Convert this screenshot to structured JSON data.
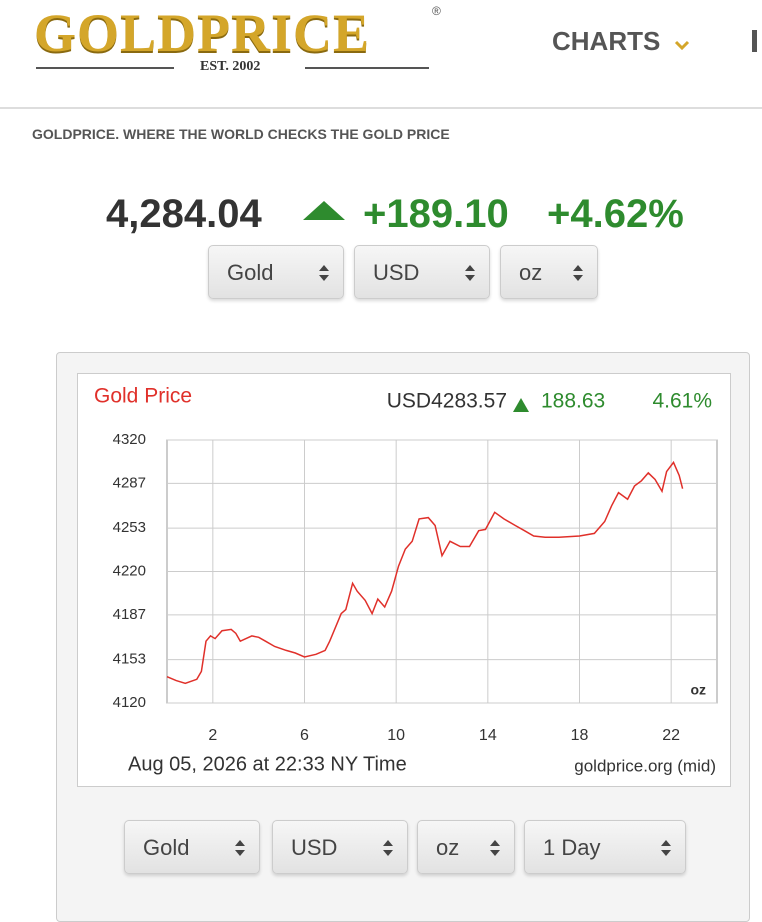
{
  "header": {
    "logo": "GOLDPRICE",
    "registered": "®",
    "established": "EST. 2002",
    "nav": "CHARTS"
  },
  "tagline": "GOLDPRICE. WHERE THE WORLD CHECKS THE GOLD PRICE",
  "price": {
    "value": "4,284.04",
    "change": "+189.10",
    "change_pct": "+4.62%"
  },
  "top_selects": [
    "Gold",
    "USD",
    "oz"
  ],
  "chart_data": {
    "type": "line",
    "title": "Gold Price",
    "quote": "USD4283.57",
    "change": "188.63",
    "change_pct": "4.61%",
    "unit": "oz",
    "timestamp": "Aug 05, 2026 at 22:33 NY Time",
    "source": "goldprice.org (mid)",
    "color": "#e0302a",
    "grid": true,
    "x": [
      0,
      0.4,
      0.8,
      1.3,
      1.5,
      1.7,
      1.9,
      2.1,
      2.4,
      2.8,
      3.0,
      3.2,
      3.7,
      4.0,
      4.3,
      4.7,
      5.2,
      5.6,
      6.0,
      6.5,
      6.9,
      7.1,
      7.6,
      7.8,
      8.1,
      8.3,
      8.65,
      8.95,
      9.2,
      9.5,
      9.8,
      10.1,
      10.4,
      10.7,
      11.0,
      11.4,
      11.7,
      12.0,
      12.35,
      12.8,
      13.2,
      13.6,
      13.9,
      14.3,
      14.7,
      15.2,
      15.6,
      16.0,
      16.5,
      17.1,
      18.0,
      18.65,
      19.1,
      19.4,
      19.7,
      20.1,
      20.4,
      20.7,
      21.0,
      21.3,
      21.6,
      21.8,
      22.1,
      22.35,
      22.5
    ],
    "values": [
      4140,
      4137,
      4135,
      4138,
      4144,
      4167,
      4171,
      4169,
      4175,
      4176,
      4173,
      4167,
      4171,
      4170,
      4167,
      4163,
      4160,
      4158,
      4155,
      4157,
      4160,
      4167,
      4188,
      4191,
      4211,
      4205,
      4198,
      4188,
      4199,
      4193,
      4205,
      4224,
      4237,
      4243,
      4260,
      4261,
      4255,
      4232,
      4243,
      4239,
      4239,
      4251,
      4252,
      4265,
      4260,
      4255,
      4251,
      4247,
      4246,
      4246,
      4247,
      4249,
      4258,
      4270,
      4280,
      4275,
      4285,
      4289,
      4295,
      4290,
      4281,
      4296,
      4303,
      4293,
      4283
    ],
    "xlim": [
      0,
      24
    ],
    "xticks": [
      2,
      6,
      10,
      14,
      18,
      22
    ],
    "ylim": [
      4120,
      4320
    ],
    "yticks": [
      4120,
      4153,
      4187,
      4220,
      4253,
      4287,
      4320
    ]
  },
  "bottom_selects": [
    "Gold",
    "USD",
    "oz",
    "1 Day"
  ]
}
